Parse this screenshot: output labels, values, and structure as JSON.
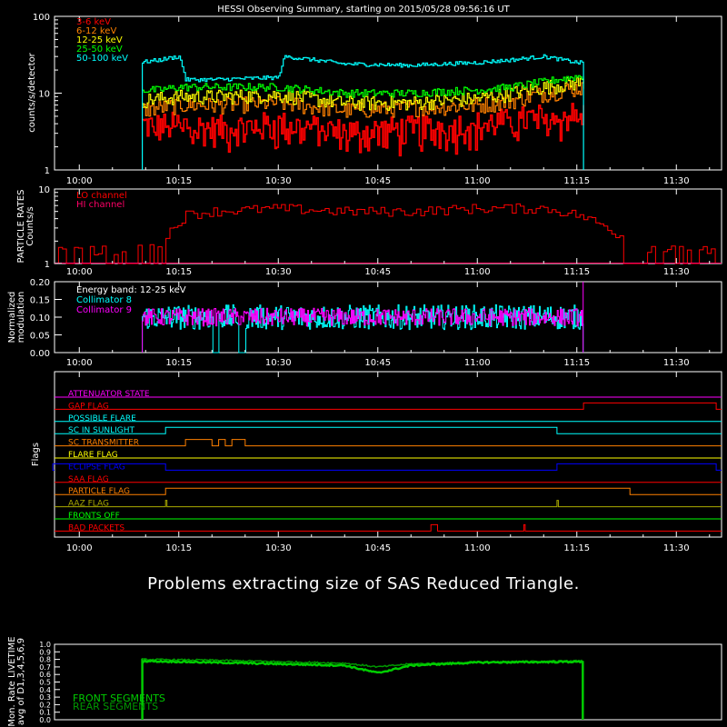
{
  "title": "HESSI Observing Summary, starting on 2015/05/28 09:56:16 UT",
  "time_labels": [
    "10:00",
    "10:15",
    "10:30",
    "10:45",
    "11:00",
    "11:15",
    "11:30"
  ],
  "message": "Problems extracting size of SAS Reduced Triangle.",
  "colors": {
    "ch_3_6": "#ff0000",
    "ch_6_12": "#ff8000",
    "ch_12_25": "#ffff00",
    "ch_25_50": "#00ff00",
    "ch_50_100": "#00ffff",
    "lo_channel": "#ff0000",
    "hi_channel": "#ff0066",
    "coll8": "#00ffff",
    "coll9": "#ff00ff",
    "front": "#00cc00",
    "rear": "#009900"
  },
  "chart_data": [
    {
      "type": "line",
      "ylabel": "counts/s/detector",
      "y_scale": "log",
      "ylim": [
        1,
        100
      ],
      "y_ticks": [
        "1",
        "10",
        "100"
      ],
      "x_ticks": [
        "10:00",
        "10:15",
        "10:30",
        "10:45",
        "11:00",
        "11:15",
        "11:30"
      ],
      "series": [
        {
          "name": "3-6 keV",
          "x": [
            "10:09",
            "10:12",
            "10:15",
            "10:20",
            "10:30",
            "10:40",
            "10:50",
            "11:00",
            "11:05",
            "11:10",
            "11:16"
          ],
          "y": [
            4,
            3.8,
            4,
            3.5,
            4,
            3.2,
            3.5,
            4,
            4.5,
            5,
            5.5
          ]
        },
        {
          "name": "6-12 keV",
          "x": [
            "10:09",
            "10:12",
            "10:15",
            "10:20",
            "10:30",
            "10:40",
            "10:50",
            "11:00",
            "11:05",
            "11:10",
            "11:16"
          ],
          "y": [
            6,
            6.5,
            7,
            7,
            7.5,
            6,
            6.5,
            7,
            8,
            10,
            12
          ]
        },
        {
          "name": "12-25 keV",
          "x": [
            "10:09",
            "10:12",
            "10:15",
            "10:20",
            "10:30",
            "10:40",
            "10:50",
            "11:00",
            "11:05",
            "11:10",
            "11:16"
          ],
          "y": [
            8,
            8.5,
            9,
            9,
            9.5,
            7.5,
            7.5,
            8.5,
            10,
            12,
            14
          ]
        },
        {
          "name": "25-50 keV",
          "x": [
            "10:09",
            "10:12",
            "10:15",
            "10:20",
            "10:30",
            "10:40",
            "10:50",
            "11:00",
            "11:05",
            "11:10",
            "11:16"
          ],
          "y": [
            11,
            11,
            12,
            12,
            12,
            10,
            10,
            11,
            12,
            14,
            17
          ]
        },
        {
          "name": "50-100 keV",
          "x": [
            "10:09",
            "10:12",
            "10:15",
            "10:16",
            "10:20",
            "10:30",
            "10:31",
            "10:40",
            "10:50",
            "11:00",
            "11:05",
            "11:10",
            "11:15",
            "11:16"
          ],
          "y": [
            25,
            27,
            30,
            15,
            15,
            16,
            30,
            24,
            23,
            25,
            27,
            30,
            25,
            25
          ]
        }
      ]
    },
    {
      "type": "line",
      "ylabel": "PARTICLE RATES Counts/s",
      "y_scale": "log",
      "ylim": [
        1,
        10
      ],
      "y_ticks": [
        "1",
        "10"
      ],
      "x_ticks": [
        "10:00",
        "10:15",
        "10:30",
        "10:45",
        "11:00",
        "11:15",
        "11:30"
      ],
      "series": [
        {
          "name": "LO channel",
          "x": [
            "09:57",
            "10:05",
            "10:09",
            "10:12",
            "10:14",
            "10:16",
            "10:20",
            "10:30",
            "10:40",
            "10:50",
            "11:00",
            "11:10",
            "11:15",
            "11:18",
            "11:21",
            "11:24",
            "11:27",
            "11:33"
          ],
          "y": [
            1.5,
            1.5,
            1.8,
            1.8,
            3,
            4.5,
            5,
            5.5,
            5,
            5,
            5.5,
            5.5,
            4.5,
            3.5,
            2.5,
            1.5,
            1.5,
            1.5
          ]
        },
        {
          "name": "HI channel",
          "x": [
            "09:57",
            "11:33"
          ],
          "y": [
            1,
            1
          ]
        }
      ]
    },
    {
      "type": "line",
      "title": "Energy band: 12-25 keV",
      "ylabel": "Normalized modulation",
      "ylim": [
        0,
        0.2
      ],
      "y_ticks": [
        "0.00",
        "0.05",
        "0.10",
        "0.15",
        "0.20"
      ],
      "x_ticks": [
        "10:00",
        "10:15",
        "10:30",
        "10:45",
        "11:00",
        "11:15",
        "11:30"
      ],
      "series": [
        {
          "name": "Collimator 8",
          "x": [
            "10:09",
            "11:16"
          ],
          "y": [
            0.1,
            0.1
          ]
        },
        {
          "name": "Collimator 9",
          "x": [
            "10:09",
            "11:16"
          ],
          "y": [
            0.1,
            0.1
          ]
        }
      ]
    },
    {
      "type": "line",
      "ylabel": "Flags",
      "x_ticks": [
        "10:00",
        "10:15",
        "10:30",
        "10:45",
        "11:00",
        "11:15",
        "11:30"
      ],
      "series": [
        {
          "name": "ATTENUATOR STATE",
          "color": "#ff00ff",
          "steps": []
        },
        {
          "name": "GAP FLAG",
          "color": "#ff0000",
          "steps": [
            [
              "11:16",
              "11:36"
            ]
          ]
        },
        {
          "name": "POSSIBLE FLARE",
          "color": "#00ffff",
          "steps": []
        },
        {
          "name": "SC IN SUNLIGHT",
          "color": "#00ffff",
          "steps": [
            [
              "10:13",
              "11:12"
            ]
          ]
        },
        {
          "name": "SC TRANSMITTER",
          "color": "#ff8000",
          "steps": [
            [
              "10:16",
              "10:20"
            ],
            [
              "10:21",
              "10:22"
            ],
            [
              "10:23",
              "10:25"
            ]
          ]
        },
        {
          "name": "FLARE FLAG",
          "color": "#ffff00",
          "steps": []
        },
        {
          "name": "ECLIPSE FLAG",
          "color": "#0000ff",
          "steps": [
            [
              "09:56",
              "10:13"
            ],
            [
              "11:12",
              "11:36"
            ]
          ]
        },
        {
          "name": "SAA FLAG",
          "color": "#ff0000",
          "steps": []
        },
        {
          "name": "PARTICLE FLAG",
          "color": "#ff8000",
          "steps": [
            [
              "10:13",
              "11:23"
            ]
          ]
        },
        {
          "name": "AAZ FLAG",
          "color": "#aaaa00",
          "steps": [
            [
              "10:13",
              "10:13"
            ],
            [
              "11:12",
              "11:12"
            ]
          ]
        },
        {
          "name": "FRONTS OFF",
          "color": "#00ff00",
          "steps": []
        },
        {
          "name": "BAD PACKETS",
          "color": "#ff0000",
          "steps": [
            [
              "10:53",
              "10:54"
            ],
            [
              "11:07",
              "11:07"
            ]
          ]
        }
      ]
    },
    {
      "type": "line",
      "ylabel": "Mon. Rate LIVETIME avg of D1,3,4,5,6,9",
      "ylim": [
        0,
        1
      ],
      "y_ticks": [
        "0.0",
        "0.1",
        "0.2",
        "0.3",
        "0.4",
        "0.5",
        "0.6",
        "0.7",
        "0.8",
        "0.9",
        "1.0"
      ],
      "series": [
        {
          "name": "FRONT SEGMENTS",
          "x": [
            "10:09",
            "10:20",
            "10:40",
            "10:45",
            "10:50",
            "11:00",
            "11:16"
          ],
          "y": [
            0.78,
            0.76,
            0.72,
            0.62,
            0.72,
            0.76,
            0.77
          ]
        },
        {
          "name": "REAR SEGMENTS",
          "x": [
            "10:09",
            "10:20",
            "10:40",
            "10:45",
            "10:50",
            "11:00",
            "11:16"
          ],
          "y": [
            0.8,
            0.79,
            0.75,
            0.7,
            0.74,
            0.76,
            0.78
          ]
        }
      ]
    }
  ]
}
